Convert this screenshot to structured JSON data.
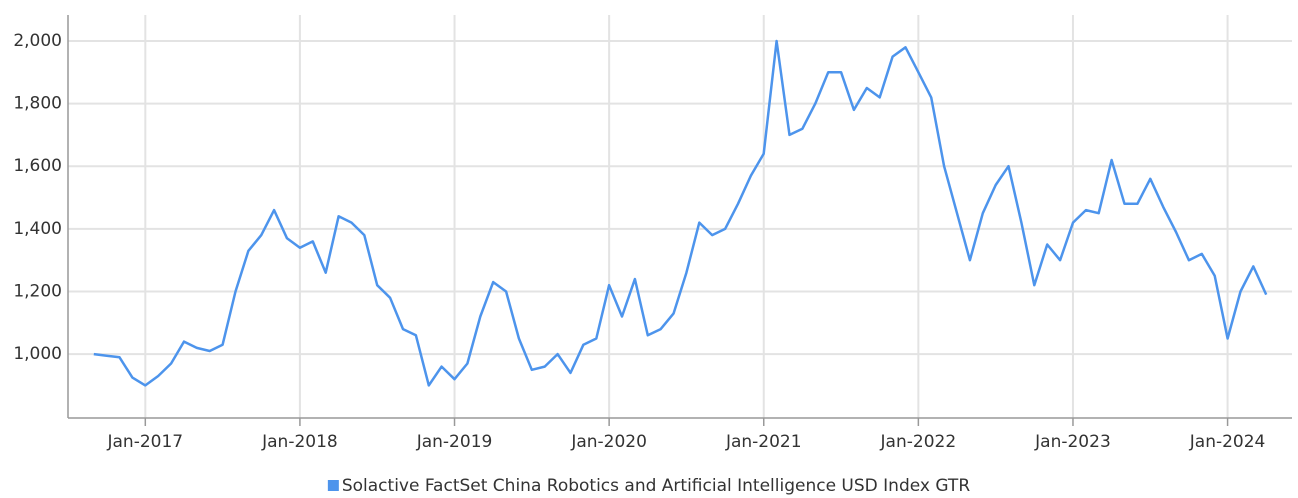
{
  "chart_data": {
    "type": "line",
    "x": [
      "2016-09",
      "2016-10",
      "2016-11",
      "2016-12",
      "2017-01",
      "2017-02",
      "2017-03",
      "2017-04",
      "2017-05",
      "2017-06",
      "2017-07",
      "2017-08",
      "2017-09",
      "2017-10",
      "2017-11",
      "2017-12",
      "2018-01",
      "2018-02",
      "2018-03",
      "2018-04",
      "2018-05",
      "2018-06",
      "2018-07",
      "2018-08",
      "2018-09",
      "2018-10",
      "2018-11",
      "2018-12",
      "2019-01",
      "2019-02",
      "2019-03",
      "2019-04",
      "2019-05",
      "2019-06",
      "2019-07",
      "2019-08",
      "2019-09",
      "2019-10",
      "2019-11",
      "2019-12",
      "2020-01",
      "2020-02",
      "2020-03",
      "2020-04",
      "2020-05",
      "2020-06",
      "2020-07",
      "2020-08",
      "2020-09",
      "2020-10",
      "2020-11",
      "2020-12",
      "2021-01",
      "2021-02",
      "2021-03",
      "2021-04",
      "2021-05",
      "2021-06",
      "2021-07",
      "2021-08",
      "2021-09",
      "2021-10",
      "2021-11",
      "2021-12",
      "2022-01",
      "2022-02",
      "2022-03",
      "2022-04",
      "2022-05",
      "2022-06",
      "2022-07",
      "2022-08",
      "2022-09",
      "2022-10",
      "2022-11",
      "2022-12",
      "2023-01",
      "2023-02",
      "2023-03",
      "2023-04",
      "2023-05",
      "2023-06",
      "2023-07",
      "2023-08",
      "2023-09",
      "2023-10",
      "2023-11",
      "2023-12",
      "2024-01",
      "2024-02",
      "2024-03",
      "2024-04"
    ],
    "series": [
      {
        "name": "Solactive FactSet China Robotics and Artificial Intelligence USD Index GTR",
        "color": "#4d94ec",
        "values": [
          1000,
          995,
          990,
          925,
          900,
          930,
          970,
          1040,
          1020,
          1010,
          1030,
          1200,
          1330,
          1380,
          1460,
          1370,
          1340,
          1360,
          1260,
          1440,
          1420,
          1380,
          1220,
          1180,
          1080,
          1060,
          900,
          960,
          920,
          970,
          1120,
          1230,
          1200,
          1050,
          950,
          960,
          1000,
          940,
          1030,
          1050,
          1220,
          1120,
          1240,
          1060,
          1080,
          1130,
          1260,
          1420,
          1380,
          1400,
          1480,
          1570,
          1640,
          2000,
          1700,
          1720,
          1800,
          1900,
          1900,
          1780,
          1850,
          1820,
          1950,
          1980,
          1900,
          1820,
          1600,
          1450,
          1300,
          1450,
          1540,
          1600,
          1420,
          1220,
          1350,
          1300,
          1420,
          1460,
          1450,
          1620,
          1480,
          1480,
          1560,
          1470,
          1390,
          1300,
          1320,
          1250,
          1050,
          1200,
          1280,
          1190
        ]
      }
    ],
    "xlim": [
      "2016-07",
      "2024-06"
    ],
    "xticks": [
      {
        "value": "2017-01",
        "label": "Jan-2017"
      },
      {
        "value": "2018-01",
        "label": "Jan-2018"
      },
      {
        "value": "2019-01",
        "label": "Jan-2019"
      },
      {
        "value": "2020-01",
        "label": "Jan-2020"
      },
      {
        "value": "2021-01",
        "label": "Jan-2021"
      },
      {
        "value": "2022-01",
        "label": "Jan-2022"
      },
      {
        "value": "2023-01",
        "label": "Jan-2023"
      },
      {
        "value": "2024-01",
        "label": "Jan-2024"
      }
    ],
    "ylim": [
      796,
      2083
    ],
    "yticks": [
      {
        "value": 1000,
        "label": "1,000"
      },
      {
        "value": 1200,
        "label": "1,200"
      },
      {
        "value": 1400,
        "label": "1,400"
      },
      {
        "value": 1600,
        "label": "1,600"
      },
      {
        "value": 1800,
        "label": "1,800"
      },
      {
        "value": 2000,
        "label": "2,000"
      }
    ],
    "grid": true
  }
}
